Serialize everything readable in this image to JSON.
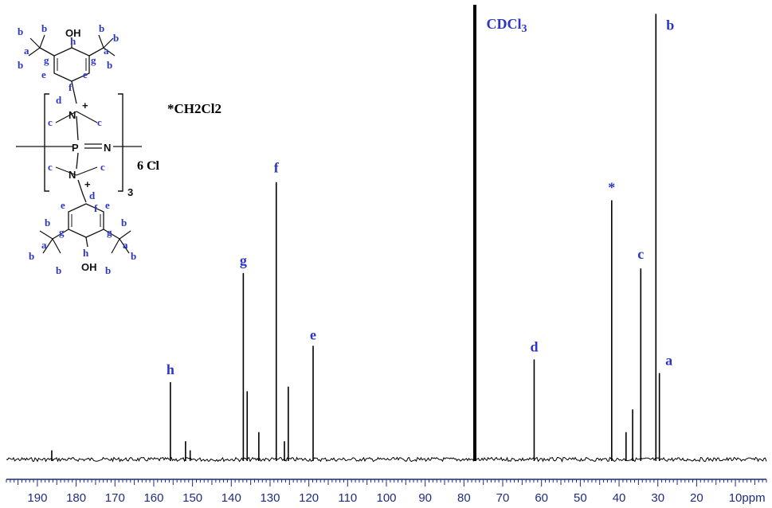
{
  "chart_data": {
    "type": "line",
    "xlabel": "",
    "x_unit_label": "ppm",
    "ylabel": "",
    "xlim": [
      198,
      2
    ],
    "x_reversed": true,
    "x_ticks": [
      190,
      180,
      170,
      160,
      150,
      140,
      130,
      120,
      110,
      100,
      90,
      80,
      70,
      60,
      50,
      40,
      30,
      20,
      10
    ],
    "peaks": [
      {
        "ppm": 186.3,
        "height": 0.02
      },
      {
        "ppm": 155.7,
        "height": 0.17,
        "label": "h"
      },
      {
        "ppm": 151.8,
        "height": 0.04
      },
      {
        "ppm": 150.6,
        "height": 0.02
      },
      {
        "ppm": 136.9,
        "height": 0.41,
        "label": "g"
      },
      {
        "ppm": 135.9,
        "height": 0.15
      },
      {
        "ppm": 132.9,
        "height": 0.06
      },
      {
        "ppm": 128.4,
        "height": 0.61,
        "label": "f"
      },
      {
        "ppm": 126.3,
        "height": 0.04
      },
      {
        "ppm": 125.3,
        "height": 0.16
      },
      {
        "ppm": 118.9,
        "height": 0.25,
        "label": "e"
      },
      {
        "ppm": 77.2,
        "height": 1.0,
        "label": "CDCl3",
        "solvent": true
      },
      {
        "ppm": 61.9,
        "height": 0.22,
        "label": "d"
      },
      {
        "ppm": 41.9,
        "height": 0.57,
        "label": "*"
      },
      {
        "ppm": 38.2,
        "height": 0.06
      },
      {
        "ppm": 36.5,
        "height": 0.11
      },
      {
        "ppm": 34.4,
        "height": 0.42,
        "label": "c"
      },
      {
        "ppm": 30.5,
        "height": 0.98,
        "label": "b"
      },
      {
        "ppm": 29.6,
        "height": 0.19,
        "label": "a"
      }
    ],
    "annotation": "*CH2Cl2",
    "counterion_label": "6 Cl",
    "grid": false,
    "legend": "none"
  },
  "structure": {
    "top_oh": "OH",
    "bottom_oh": "OH",
    "repeat_subscript": "3",
    "labels": [
      "a",
      "b",
      "c",
      "d",
      "e",
      "f",
      "g",
      "h"
    ],
    "atoms": {
      "p": "P",
      "n_ring": "N",
      "n_plus": "N",
      "plus": "+",
      "minus": "-"
    }
  },
  "colors": {
    "label_blue": "#2b35c8",
    "axis_blue": "#1f2c80",
    "spectrum": "#000000"
  }
}
